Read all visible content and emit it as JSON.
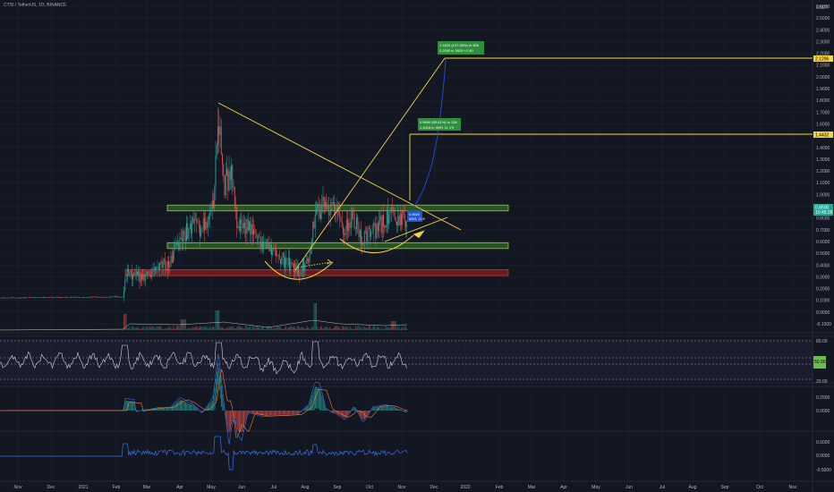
{
  "header": {
    "symbol": "CTSI / TetherUS, 1D, BINANCE"
  },
  "chart_data": {
    "type": "candlestick",
    "symbol": "CTSI / TetherUS",
    "interval": "1D",
    "exchange": "BINANCE",
    "price_axis_ticks": [
      "2.6000",
      "2.5000",
      "2.4000",
      "2.3000",
      "2.2000",
      "2.1000",
      "2.0000",
      "1.9000",
      "1.8000",
      "1.7000",
      "1.6000",
      "1.5000",
      "1.4000",
      "1.3000",
      "1.2000",
      "1.1000",
      "1.0000",
      "0.9000",
      "0.8000",
      "0.7000",
      "0.6000",
      "0.5000",
      "0.4000",
      "0.3000",
      "0.2000",
      "0.1000",
      "0.0000",
      "-0.1000"
    ],
    "top_tick": "USDT",
    "current_price": "0.8500",
    "current_price_sub": "10:45:28",
    "target_high": "2.1296",
    "target_mid": "1.4432",
    "rsi_ticks": [
      "80.00",
      "20.00"
    ],
    "rsi_tag": "50.00",
    "macd_ticks": [
      "0.2500",
      "0.0000"
    ],
    "osc_ticks": [
      "0.5000",
      "0.0000",
      "-0.5000"
    ],
    "time_axis": [
      "Nov",
      "Dec",
      "2021",
      "Feb",
      "Mar",
      "Apr",
      "May",
      "Jun",
      "Jul",
      "Aug",
      "Sep",
      "Oct",
      "Nov",
      "Dec",
      "2022",
      "Feb",
      "Mar",
      "Apr",
      "May",
      "Jun",
      "Jul",
      "Aug",
      "Sep",
      "Oct",
      "Nov"
    ],
    "annotations": {
      "box_top": {
        "line1": "1.1820 (137.85%) in 356",
        "line2": "2.2000 in 3029 +2 60"
      },
      "box_mid": {
        "line1": "0.5690 (65.61%) in 126",
        "line2": "1.4318 in 3091 11 1'9"
      },
      "box_cur": {
        "line1": "0.8520",
        "line2": "0821 11 6'"
      }
    },
    "zones": [
      {
        "name": "resistance",
        "low": 0.86,
        "high": 0.91,
        "color": "#2e6b1f"
      },
      {
        "name": "support",
        "low": 0.54,
        "high": 0.59,
        "color": "#2e6b1f"
      },
      {
        "name": "base",
        "low": 0.31,
        "high": 0.36,
        "color": "#8b1c1c"
      }
    ],
    "colors": {
      "up": "#26a69a",
      "down": "#ef5350",
      "trend": "#f5d442",
      "target": "#1e54d6",
      "rsi": "#d1d4dc",
      "macd": "#3a6ee8",
      "signal": "#ff7a2e"
    }
  }
}
